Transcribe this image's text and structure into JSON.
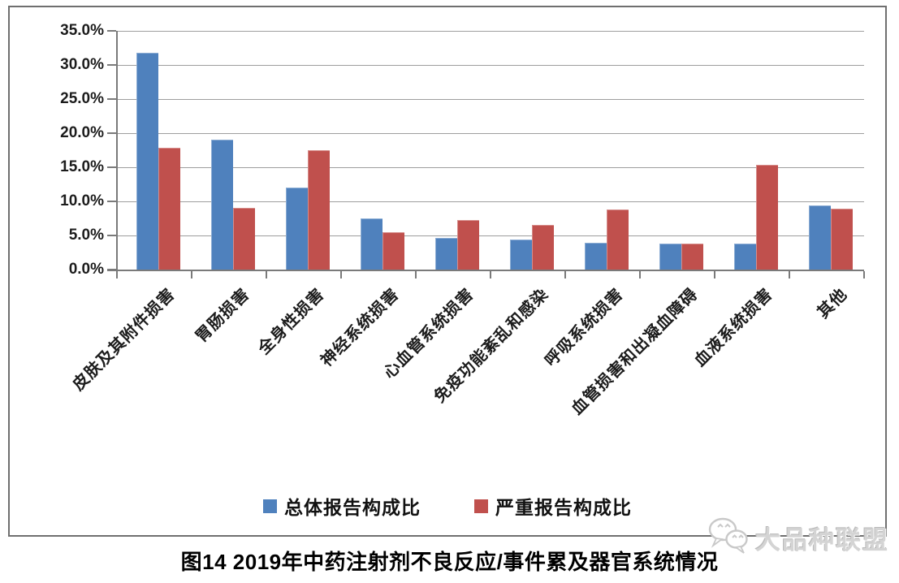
{
  "figure": {
    "caption": "图14 2019年中药注射剂不良反应/事件累及器官系统情况",
    "watermark_text": "大品种联盟"
  },
  "chart_data": {
    "type": "bar",
    "title": "",
    "xlabel": "",
    "ylabel": "",
    "ylim": [
      0,
      35
    ],
    "grid": true,
    "legend_position": "bottom",
    "y_tick_labels": [
      "0.0%",
      "5.0%",
      "10.0%",
      "15.0%",
      "20.0%",
      "25.0%",
      "30.0%",
      "35.0%"
    ],
    "categories": [
      "皮肤及其附件损害",
      "胃肠损害",
      "全身性损害",
      "神经系统损害",
      "心血管系统损害",
      "免疫功能紊乱和感染",
      "呼吸系统损害",
      "血管损害和出凝血障碍",
      "血液系统损害",
      "其他"
    ],
    "series": [
      {
        "name": "总体报告构成比",
        "color": "#4F81BD",
        "values": [
          31.8,
          19.1,
          12.0,
          7.5,
          4.7,
          4.4,
          3.9,
          3.8,
          3.8,
          9.4
        ]
      },
      {
        "name": "严重报告构成比",
        "color": "#C0504D",
        "values": [
          17.8,
          9.0,
          17.5,
          5.5,
          7.3,
          6.6,
          8.8,
          3.8,
          15.3,
          8.9
        ]
      }
    ]
  }
}
